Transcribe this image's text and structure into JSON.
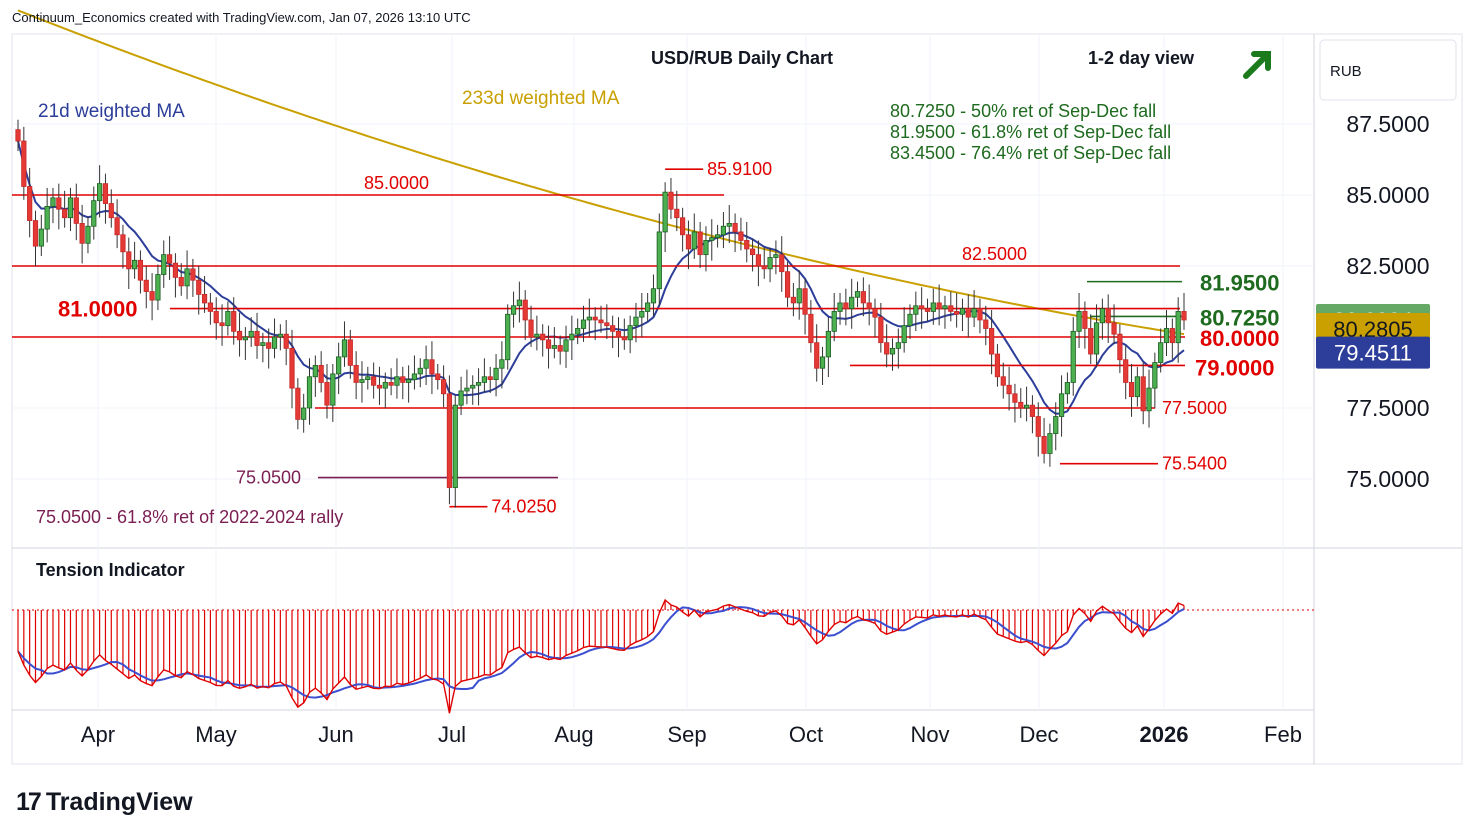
{
  "header": {
    "credit": "Continuum_Economics created with TradingView.com, Jan 07, 2026 13:10 UTC"
  },
  "brand": {
    "logo_text": "TradingView"
  },
  "colors": {
    "up": "#1b5e20",
    "down": "#c62828",
    "level": "#e00000",
    "ma21": "#2c3e9a",
    "ma233": "#c9a000",
    "fib": "#1e6a1e",
    "purple": "#7b1e52",
    "tension_line": "#3b4fd0"
  },
  "chart_data": {
    "type": "candlestick",
    "title": "USD/RUB Daily Chart",
    "view_label": "1-2 day view",
    "view_icon": "arrow-up-right-icon",
    "currency": "RUB",
    "ylim": [
      73.0,
      90.0
    ],
    "y_ticks": [
      "87.5000",
      "85.0000",
      "82.5000",
      "77.5000",
      "75.0000"
    ],
    "x_ticks": [
      "Apr",
      "May",
      "Jun",
      "Jul",
      "Aug",
      "Sep",
      "Oct",
      "Nov",
      "Dec",
      "2026",
      "Feb"
    ],
    "price_tags": [
      {
        "value": "80.6004",
        "kind": "last"
      },
      {
        "value": "80.2805",
        "kind": "ma233"
      },
      {
        "value": "79.4511",
        "kind": "ma21"
      }
    ],
    "ma_labels": {
      "ma21": "21d weighted MA",
      "ma233": "233d weighted MA"
    },
    "fib_notes": [
      "80.7250 - 50% ret of Sep-Dec fall",
      "81.9500 - 61.8% ret of Sep-Dec fall",
      "83.4500 - 76.4% ret of Sep-Dec fall"
    ],
    "levels": [
      {
        "value": 85.0,
        "label": "85.0000"
      },
      {
        "value": 82.5,
        "label": "82.5000"
      },
      {
        "value": 81.0,
        "label": "81.0000"
      },
      {
        "value": 80.0,
        "label": "80.0000"
      },
      {
        "value": 79.0,
        "label": "79.0000"
      },
      {
        "value": 77.5,
        "label": "77.5000"
      },
      {
        "value": 75.54,
        "label": "75.5400"
      }
    ],
    "fib_levels": [
      {
        "value": 81.95,
        "label": "81.9500"
      },
      {
        "value": 80.725,
        "label": "80.7250"
      }
    ],
    "markers": [
      {
        "value": 85.91,
        "label": "85.9100"
      },
      {
        "value": 74.025,
        "label": "74.0250"
      }
    ],
    "support_note": {
      "value": 75.05,
      "label": "75.0500",
      "text": "75.0500 - 61.8% ret of 2022-2024 rally"
    },
    "tension": {
      "title": "Tension Indicator"
    },
    "series_close": [
      86.9,
      85.3,
      84.1,
      83.2,
      83.8,
      84.6,
      84.9,
      84.5,
      84.2,
      84.9,
      84.0,
      83.3,
      83.9,
      84.8,
      85.4,
      84.7,
      84.2,
      83.6,
      83.0,
      82.4,
      82.7,
      82.0,
      81.6,
      81.3,
      82.2,
      82.9,
      82.6,
      82.1,
      81.8,
      82.4,
      82.0,
      81.5,
      81.2,
      80.9,
      80.5,
      80.4,
      80.9,
      80.2,
      79.9,
      80.0,
      80.2,
      79.7,
      79.8,
      79.6,
      80.0,
      80.1,
      79.6,
      78.2,
      77.1,
      77.5,
      78.6,
      79.0,
      78.4,
      77.6,
      78.7,
      79.3,
      79.9,
      79.0,
      78.4,
      78.5,
      78.6,
      78.3,
      78.2,
      78.4,
      78.3,
      78.6,
      78.4,
      78.5,
      78.7,
      78.9,
      79.2,
      78.7,
      78.5,
      78.0,
      74.7,
      77.6,
      78.1,
      78.2,
      78.3,
      78.4,
      78.6,
      78.5,
      78.9,
      79.2,
      80.8,
      81.1,
      81.3,
      80.6,
      80.0,
      80.1,
      79.9,
      79.6,
      79.7,
      79.5,
      79.9,
      80.1,
      80.3,
      80.6,
      80.7,
      80.6,
      80.5,
      80.4,
      80.2,
      80.0,
      79.9,
      80.4,
      80.7,
      80.9,
      81.2,
      81.7,
      83.7,
      85.1,
      84.5,
      84.2,
      83.6,
      83.1,
      83.7,
      82.9,
      83.4,
      83.5,
      83.6,
      83.9,
      84.0,
      83.7,
      83.4,
      83.1,
      82.9,
      82.5,
      82.4,
      82.8,
      82.9,
      82.3,
      81.4,
      81.2,
      81.7,
      80.8,
      79.8,
      78.9,
      79.3,
      80.2,
      80.9,
      81.2,
      81.0,
      81.4,
      81.6,
      81.2,
      81.0,
      80.7,
      79.8,
      79.4,
      79.6,
      79.8,
      80.4,
      80.8,
      81.1,
      81.0,
      80.9,
      81.2,
      81.0,
      81.1,
      80.9,
      80.8,
      81.0,
      80.7,
      81.0,
      80.6,
      80.3,
      79.4,
      78.6,
      78.3,
      78.0,
      77.7,
      77.5,
      77.6,
      77.2,
      76.5,
      75.9,
      76.6,
      77.2,
      78.0,
      78.4,
      80.2,
      80.9,
      80.3,
      79.4,
      80.5,
      81.0,
      80.5,
      80.1,
      79.2,
      78.4,
      77.9,
      78.6,
      77.4,
      78.2,
      79.1,
      79.8,
      80.3,
      79.8,
      80.9,
      80.6
    ]
  }
}
